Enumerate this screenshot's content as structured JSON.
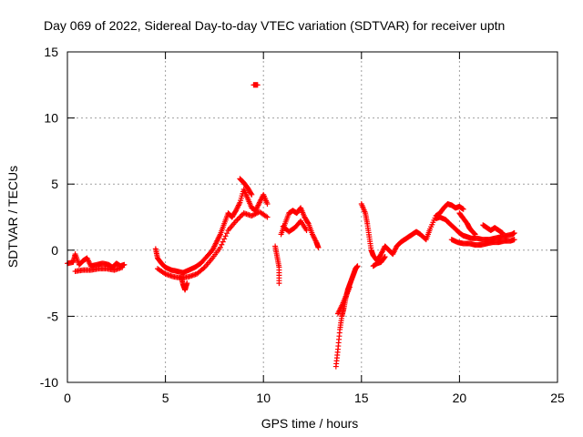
{
  "chart_data": {
    "type": "scatter",
    "title": "Day 069 of 2022, Sidereal Day-to-day VTEC variation (SDTVAR) for receiver uptn",
    "xlabel": "GPS time / hours",
    "ylabel": "SDTVAR / TECUs",
    "xlim": [
      0,
      25
    ],
    "ylim": [
      -10,
      15
    ],
    "xticks": [
      0,
      5,
      10,
      15,
      20,
      25
    ],
    "yticks": [
      -10,
      -5,
      0,
      5,
      10,
      15
    ],
    "xtick_labels": [
      "0",
      "5",
      "10",
      "15",
      "20",
      "25"
    ],
    "ytick_labels": [
      "-10",
      "-5",
      "0",
      "5",
      "10",
      "15"
    ],
    "grid": true,
    "marker": "+",
    "color": "#ff0000",
    "series": [
      {
        "name": "SDTVAR",
        "segments": [
          [
            [
              0.0,
              -1.0
            ],
            [
              0.3,
              -0.9
            ],
            [
              0.4,
              -0.3
            ],
            [
              0.6,
              -1.1
            ],
            [
              0.8,
              -0.8
            ],
            [
              1.0,
              -0.6
            ],
            [
              1.2,
              -1.2
            ],
            [
              1.5,
              -1.1
            ],
            [
              1.8,
              -1.0
            ],
            [
              2.1,
              -1.1
            ],
            [
              2.3,
              -1.3
            ],
            [
              2.5,
              -1.0
            ],
            [
              2.7,
              -1.2
            ],
            [
              2.9,
              -1.1
            ]
          ],
          [
            [
              0.4,
              -1.6
            ],
            [
              0.8,
              -1.5
            ],
            [
              1.2,
              -1.5
            ],
            [
              1.6,
              -1.4
            ],
            [
              2.0,
              -1.4
            ],
            [
              2.4,
              -1.5
            ],
            [
              2.8,
              -1.3
            ]
          ],
          [
            [
              4.5,
              0.1
            ],
            [
              4.6,
              -0.6
            ],
            [
              4.8,
              -1.0
            ],
            [
              5.0,
              -1.3
            ],
            [
              5.3,
              -1.5
            ],
            [
              5.6,
              -1.6
            ],
            [
              5.9,
              -1.7
            ],
            [
              6.2,
              -1.5
            ],
            [
              6.5,
              -1.3
            ],
            [
              6.8,
              -1.0
            ],
            [
              7.1,
              -0.5
            ],
            [
              7.4,
              0.0
            ],
            [
              7.6,
              0.6
            ],
            [
              7.8,
              1.2
            ],
            [
              8.0,
              2.0
            ],
            [
              8.2,
              2.8
            ],
            [
              8.4,
              2.5
            ],
            [
              8.6,
              3.0
            ],
            [
              8.8,
              3.6
            ],
            [
              9.0,
              4.6
            ],
            [
              9.2,
              3.9
            ],
            [
              9.4,
              3.2
            ],
            [
              9.6,
              3.0
            ],
            [
              9.8,
              3.6
            ],
            [
              10.0,
              4.2
            ],
            [
              10.2,
              3.5
            ]
          ],
          [
            [
              5.8,
              -2.0
            ],
            [
              5.9,
              -2.6
            ],
            [
              6.0,
              -3.0
            ],
            [
              6.1,
              -2.5
            ]
          ],
          [
            [
              4.6,
              -1.4
            ],
            [
              5.0,
              -1.8
            ],
            [
              5.4,
              -2.0
            ],
            [
              5.8,
              -2.1
            ],
            [
              6.2,
              -2.0
            ],
            [
              6.6,
              -1.8
            ],
            [
              7.0,
              -1.3
            ],
            [
              7.4,
              -0.6
            ],
            [
              7.8,
              0.2
            ],
            [
              8.2,
              1.5
            ],
            [
              8.6,
              2.2
            ],
            [
              9.0,
              2.8
            ],
            [
              9.4,
              2.6
            ],
            [
              9.8,
              2.9
            ],
            [
              10.2,
              2.5
            ]
          ],
          [
            [
              8.8,
              5.4
            ],
            [
              9.0,
              5.1
            ],
            [
              9.2,
              4.7
            ],
            [
              9.4,
              4.2
            ]
          ],
          [
            [
              9.5,
              12.5
            ],
            [
              9.7,
              12.5
            ]
          ],
          [
            [
              10.6,
              0.3
            ],
            [
              10.7,
              -0.5
            ],
            [
              10.8,
              -1.3
            ],
            [
              10.8,
              -2.5
            ]
          ],
          [
            [
              10.9,
              1.2
            ],
            [
              11.1,
              2.0
            ],
            [
              11.3,
              2.8
            ],
            [
              11.5,
              3.0
            ],
            [
              11.7,
              2.8
            ],
            [
              11.9,
              3.2
            ],
            [
              12.1,
              2.5
            ],
            [
              12.3,
              2.0
            ],
            [
              12.5,
              1.2
            ],
            [
              12.7,
              0.6
            ],
            [
              12.8,
              0.2
            ]
          ],
          [
            [
              11.0,
              1.8
            ],
            [
              11.3,
              1.4
            ],
            [
              11.6,
              1.7
            ],
            [
              11.9,
              2.2
            ],
            [
              12.2,
              1.5
            ]
          ],
          [
            [
              13.7,
              -8.8
            ],
            [
              13.8,
              -7.5
            ],
            [
              13.9,
              -6.0
            ],
            [
              14.0,
              -5.0
            ],
            [
              14.1,
              -4.4
            ],
            [
              14.2,
              -3.6
            ],
            [
              14.3,
              -3.0
            ],
            [
              14.4,
              -2.6
            ],
            [
              14.5,
              -2.2
            ],
            [
              14.6,
              -1.8
            ],
            [
              14.7,
              -1.4
            ],
            [
              14.8,
              -1.2
            ]
          ],
          [
            [
              13.8,
              -4.8
            ],
            [
              14.0,
              -4.2
            ],
            [
              14.2,
              -3.5
            ],
            [
              14.4,
              -2.8
            ]
          ],
          [
            [
              15.0,
              3.5
            ],
            [
              15.2,
              2.8
            ],
            [
              15.3,
              2.0
            ],
            [
              15.4,
              1.0
            ],
            [
              15.5,
              0.0
            ],
            [
              15.6,
              -0.4
            ],
            [
              15.8,
              -0.8
            ],
            [
              16.0,
              -0.3
            ],
            [
              16.2,
              0.3
            ],
            [
              16.4,
              0.0
            ],
            [
              16.6,
              -0.3
            ],
            [
              16.8,
              0.3
            ],
            [
              17.0,
              0.6
            ],
            [
              17.2,
              0.8
            ],
            [
              17.4,
              1.0
            ],
            [
              17.6,
              1.2
            ],
            [
              17.8,
              1.4
            ],
            [
              18.0,
              1.2
            ],
            [
              18.3,
              0.8
            ],
            [
              18.5,
              1.6
            ],
            [
              18.8,
              2.6
            ],
            [
              19.0,
              2.8
            ],
            [
              19.2,
              3.2
            ],
            [
              19.4,
              3.5
            ],
            [
              19.6,
              3.4
            ],
            [
              19.8,
              3.2
            ],
            [
              20.0,
              3.3
            ],
            [
              20.2,
              3.1
            ]
          ],
          [
            [
              15.6,
              -1.2
            ],
            [
              15.8,
              -1.0
            ],
            [
              16.0,
              -0.9
            ],
            [
              16.2,
              -0.5
            ]
          ],
          [
            [
              18.8,
              2.4
            ],
            [
              19.0,
              2.5
            ],
            [
              19.3,
              2.3
            ],
            [
              19.5,
              2.0
            ],
            [
              19.8,
              1.6
            ],
            [
              20.0,
              1.3
            ],
            [
              20.2,
              1.1
            ],
            [
              20.4,
              1.0
            ],
            [
              20.6,
              0.9
            ],
            [
              20.9,
              0.9
            ],
            [
              21.2,
              0.8
            ],
            [
              21.5,
              0.8
            ],
            [
              21.8,
              0.9
            ],
            [
              22.1,
              1.0
            ],
            [
              22.4,
              1.1
            ],
            [
              22.7,
              1.2
            ],
            [
              22.8,
              1.3
            ]
          ],
          [
            [
              19.6,
              0.8
            ],
            [
              19.9,
              0.6
            ],
            [
              20.2,
              0.5
            ],
            [
              20.5,
              0.5
            ],
            [
              20.8,
              0.4
            ],
            [
              21.1,
              0.4
            ],
            [
              21.4,
              0.5
            ],
            [
              21.7,
              0.6
            ],
            [
              22.0,
              0.6
            ],
            [
              22.3,
              0.7
            ],
            [
              22.6,
              0.7
            ],
            [
              22.8,
              0.8
            ]
          ],
          [
            [
              20.0,
              2.8
            ],
            [
              20.2,
              2.4
            ],
            [
              20.4,
              2.0
            ],
            [
              20.5,
              1.7
            ],
            [
              20.6,
              1.5
            ],
            [
              20.8,
              1.2
            ]
          ],
          [
            [
              21.2,
              1.9
            ],
            [
              21.4,
              1.7
            ],
            [
              21.6,
              1.5
            ],
            [
              21.8,
              1.7
            ],
            [
              22.0,
              1.5
            ],
            [
              22.2,
              1.3
            ]
          ]
        ]
      }
    ]
  }
}
